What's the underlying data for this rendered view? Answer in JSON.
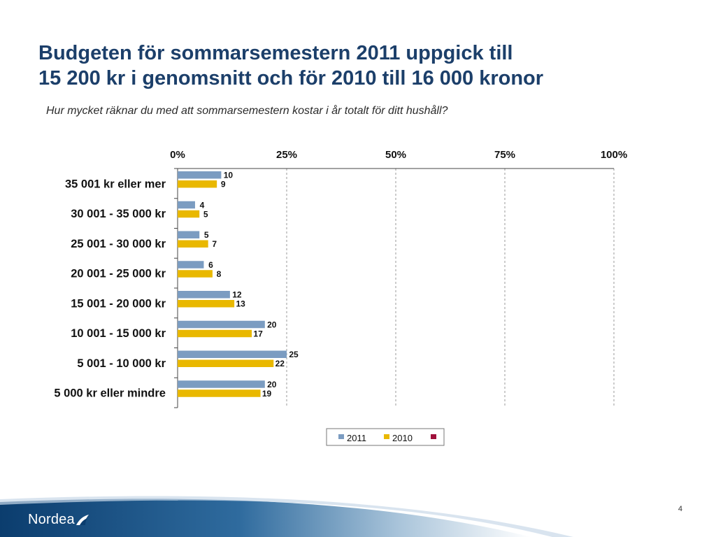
{
  "slide": {
    "title_line1": "Budgeten för sommarsemestern 2011 uppgick till",
    "title_line2": "15 200 kr i genomsnitt och för 2010 till 16 000 kronor",
    "subtitle": "Hur mycket räknar du med att sommarsemestern kostar i år totalt för ditt hushåll?",
    "page_number": "4",
    "brand": "Nordea"
  },
  "chart_data": {
    "type": "bar",
    "orientation": "horizontal",
    "categories": [
      "35 001 kr eller mer",
      "30 001 - 35 000 kr",
      "25 001 - 30 000 kr",
      "20 001 - 25 000 kr",
      "15 001 - 20 000 kr",
      "10 001 - 15 000 kr",
      "5 001 - 10 000 kr",
      "5 000 kr eller mindre"
    ],
    "series": [
      {
        "name": "2011",
        "values": [
          10,
          4,
          5,
          6,
          12,
          20,
          25,
          20
        ],
        "color": "#7b9cc1"
      },
      {
        "name": "2010",
        "values": [
          9,
          5,
          7,
          8,
          13,
          17,
          22,
          19
        ],
        "color": "#e9b800"
      }
    ],
    "extra_legend_color": "#a0103c",
    "xlim": [
      0,
      100
    ],
    "xticks": [
      "0%",
      "25%",
      "50%",
      "75%",
      "100%"
    ],
    "axis_position": "top",
    "grid": "dashed-vertical",
    "legend_position": "bottom"
  }
}
